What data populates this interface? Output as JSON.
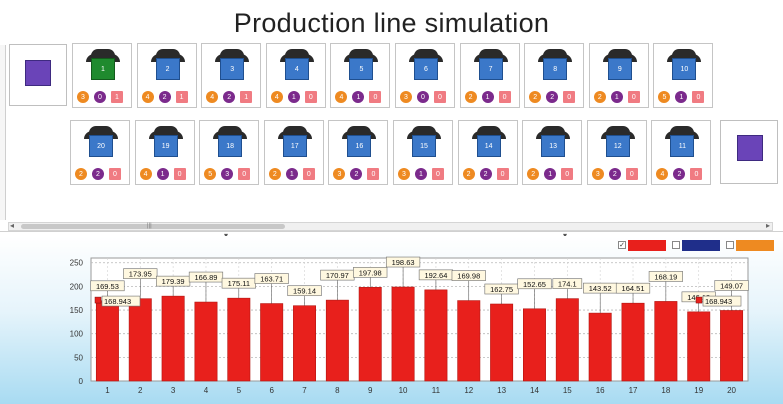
{
  "title": "Production line simulation",
  "colors": {
    "machine": "#3b78c9",
    "machine_active": "#1f8a2e",
    "buffer": "#6a44b8",
    "count_a": "#ee8a21",
    "count_b": "#7b2a8c",
    "count_c": "#f07b82",
    "bar": "#e8201c"
  },
  "row1": [
    {
      "id": "1",
      "a": "3",
      "b": "0",
      "c": "1",
      "active": true
    },
    {
      "id": "2",
      "a": "4",
      "b": "2",
      "c": "1"
    },
    {
      "id": "3",
      "a": "4",
      "b": "2",
      "c": "1"
    },
    {
      "id": "4",
      "a": "4",
      "b": "1",
      "c": "0"
    },
    {
      "id": "5",
      "a": "4",
      "b": "1",
      "c": "0"
    },
    {
      "id": "6",
      "a": "3",
      "b": "0",
      "c": "0"
    },
    {
      "id": "7",
      "a": "2",
      "b": "1",
      "c": "0"
    },
    {
      "id": "8",
      "a": "2",
      "b": "2",
      "c": "0"
    },
    {
      "id": "9",
      "a": "2",
      "b": "1",
      "c": "0"
    },
    {
      "id": "10",
      "a": "5",
      "b": "1",
      "c": "0"
    }
  ],
  "row2": [
    {
      "id": "20",
      "a": "2",
      "b": "2",
      "c": "0"
    },
    {
      "id": "19",
      "a": "4",
      "b": "1",
      "c": "0"
    },
    {
      "id": "18",
      "a": "5",
      "b": "3",
      "c": "0"
    },
    {
      "id": "17",
      "a": "2",
      "b": "1",
      "c": "0"
    },
    {
      "id": "16",
      "a": "3",
      "b": "2",
      "c": "0"
    },
    {
      "id": "15",
      "a": "3",
      "b": "1",
      "c": "0"
    },
    {
      "id": "14",
      "a": "2",
      "b": "2",
      "c": "0"
    },
    {
      "id": "13",
      "a": "2",
      "b": "1",
      "c": "0"
    },
    {
      "id": "12",
      "a": "3",
      "b": "2",
      "c": "0"
    },
    {
      "id": "11",
      "a": "4",
      "b": "2",
      "c": "0"
    }
  ],
  "legend": [
    {
      "checked": true,
      "color": "#e8201c"
    },
    {
      "checked": false,
      "color": "#1f2e8a"
    },
    {
      "checked": false,
      "color": "#ee8a21"
    }
  ],
  "chart_data": {
    "type": "bar",
    "categories": [
      "1",
      "2",
      "3",
      "4",
      "5",
      "6",
      "7",
      "8",
      "9",
      "10",
      "11",
      "12",
      "13",
      "14",
      "15",
      "16",
      "17",
      "18",
      "19",
      "20"
    ],
    "values": [
      169.53,
      173.95,
      179.39,
      166.89,
      175.11,
      163.71,
      159.14,
      170.97,
      197.98,
      198.63,
      192.64,
      169.98,
      162.75,
      152.65,
      174.1,
      143.52,
      164.51,
      168.19,
      146.19,
      149.07
    ],
    "labels": [
      "169.53",
      "173.95",
      "179.39",
      "166.89",
      "175.11",
      "163.71",
      "159.14",
      "170.97",
      "197.98",
      "198.63",
      "192.64",
      "169.98",
      "162.75",
      "152.65",
      "174.1",
      "143.52",
      "164.51",
      "168.19",
      "146.19",
      "149.07"
    ],
    "average_label": "168.943",
    "average": 168.943,
    "yticks": [
      "0",
      "50",
      "100",
      "150",
      "200",
      "250"
    ],
    "ylim": [
      0,
      260
    ],
    "grid": true
  }
}
